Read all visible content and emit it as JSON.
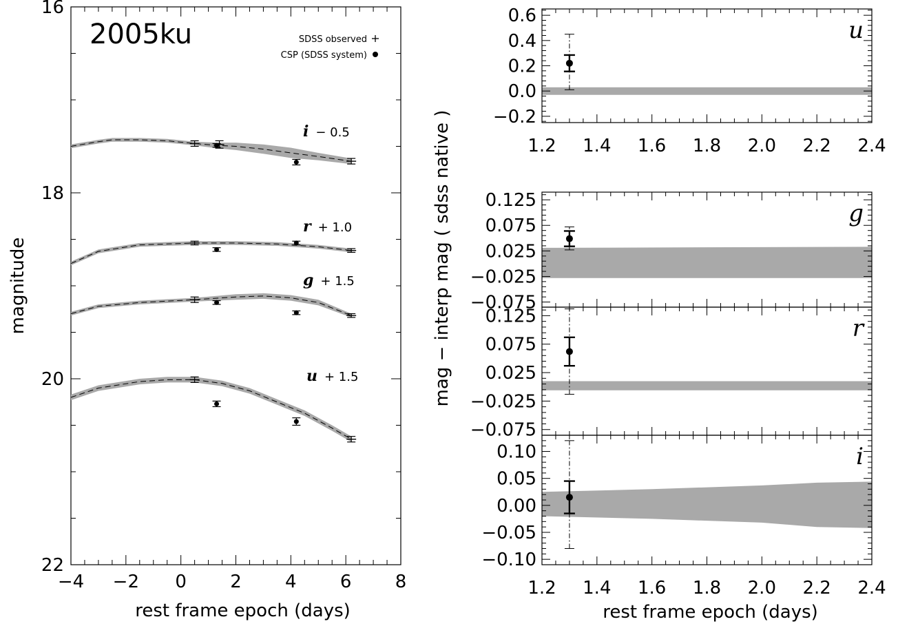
{
  "chart_data": [
    {
      "type": "line",
      "title": "2005ku",
      "xlabel": "rest frame epoch (days)",
      "ylabel": "magnitude",
      "xlim": [
        -4,
        8
      ],
      "ylim": [
        22,
        16
      ],
      "y_inverted": true,
      "xticks": [
        "−4",
        "−2",
        "0",
        "2",
        "4",
        "6",
        "8"
      ],
      "yticks": [
        "16",
        "18",
        "20",
        "22"
      ],
      "legend": {
        "placement": "top-right",
        "entries": [
          {
            "label": "SDSS observed",
            "marker": "+"
          },
          {
            "label": "CSP (SDSS system)",
            "marker": "●"
          }
        ]
      },
      "series": [
        {
          "band": "i",
          "label_band": "i",
          "label_offset": "− 0.5",
          "template_x": [
            -4,
            -3,
            -2.5,
            -1.5,
            -0.5,
            0.5,
            1.3,
            2,
            3,
            4,
            5,
            6.2
          ],
          "template_y": [
            17.5,
            17.45,
            17.43,
            17.43,
            17.44,
            17.47,
            17.49,
            17.5,
            17.53,
            17.57,
            17.61,
            17.66
          ],
          "band_halfwidth": [
            0.02,
            0.02,
            0.02,
            0.02,
            0.02,
            0.02,
            0.03,
            0.04,
            0.05,
            0.055,
            0.04,
            0.03
          ],
          "sdss_x": [
            0.5,
            1.4,
            6.2
          ],
          "sdss_y": [
            17.47,
            17.48,
            17.66
          ],
          "sdss_err": [
            0.03,
            0.04,
            0.03
          ],
          "csp_x": [
            1.3,
            4.2
          ],
          "csp_y": [
            17.49,
            17.67
          ],
          "csp_err": [
            0.02,
            0.03
          ]
        },
        {
          "band": "r",
          "label_band": "r",
          "label_offset": "+ 1.0",
          "template_x": [
            -4,
            -3,
            -1.5,
            0.5,
            2,
            3.5,
            5,
            6.2
          ],
          "template_y": [
            18.76,
            18.63,
            18.56,
            18.54,
            18.54,
            18.55,
            18.58,
            18.62
          ],
          "band_halfwidth": [
            0.02,
            0.02,
            0.02,
            0.02,
            0.02,
            0.02,
            0.02,
            0.02
          ],
          "sdss_x": [
            0.5,
            6.2
          ],
          "sdss_y": [
            18.54,
            18.62
          ],
          "sdss_err": [
            0.02,
            0.02
          ],
          "csp_x": [
            1.3,
            4.2
          ],
          "csp_y": [
            18.61,
            18.54
          ],
          "csp_err": [
            0.02,
            0.02
          ]
        },
        {
          "band": "g",
          "label_band": "g",
          "label_offset": "+ 1.5",
          "template_x": [
            -4,
            -3,
            -1.5,
            0.5,
            2,
            3,
            4,
            5,
            6.2
          ],
          "template_y": [
            19.3,
            19.22,
            19.18,
            19.15,
            19.12,
            19.11,
            19.13,
            19.18,
            19.32
          ],
          "band_halfwidth": [
            0.02,
            0.02,
            0.02,
            0.02,
            0.03,
            0.03,
            0.03,
            0.03,
            0.02
          ],
          "sdss_x": [
            0.5,
            6.2
          ],
          "sdss_y": [
            19.15,
            19.32
          ],
          "sdss_err": [
            0.03,
            0.02
          ],
          "csp_x": [
            1.3,
            4.2
          ],
          "csp_y": [
            19.18,
            19.29
          ],
          "csp_err": [
            0.02,
            0.02
          ]
        },
        {
          "band": "u",
          "label_band": "u",
          "label_offset": "+ 1.5",
          "template_x": [
            -4,
            -3,
            -1.5,
            -0.5,
            0.5,
            1.5,
            2.5,
            3.5,
            4.5,
            5.5,
            6.2
          ],
          "template_y": [
            20.2,
            20.1,
            20.03,
            20.01,
            20.01,
            20.05,
            20.13,
            20.25,
            20.37,
            20.53,
            20.65
          ],
          "band_halfwidth": [
            0.03,
            0.03,
            0.03,
            0.03,
            0.03,
            0.03,
            0.03,
            0.03,
            0.03,
            0.03,
            0.03
          ],
          "sdss_x": [
            0.5,
            6.2
          ],
          "sdss_y": [
            20.01,
            20.65
          ],
          "sdss_err": [
            0.03,
            0.03
          ],
          "csp_x": [
            1.3,
            4.2
          ],
          "csp_y": [
            20.27,
            20.46
          ],
          "csp_err": [
            0.03,
            0.04
          ]
        }
      ]
    },
    {
      "type": "scatter",
      "ylabel": "mag − interp mag ( sdss native )",
      "xlabel": "rest frame epoch (days)",
      "xlim": [
        1.2,
        2.4
      ],
      "xticks": [
        "1.2",
        "1.4",
        "1.6",
        "1.8",
        "2.0",
        "2.2",
        "2.4"
      ],
      "panels": [
        {
          "band": "u",
          "ylim": [
            -0.25,
            0.65
          ],
          "yticks": [
            "0.6",
            "0.4",
            "0.2",
            "0.0",
            "−0.2"
          ],
          "ytick_values": [
            0.6,
            0.4,
            0.2,
            0.0,
            -0.2
          ],
          "band_x": [
            1.2,
            2.4
          ],
          "band_low": [
            -0.03,
            -0.03
          ],
          "band_high": [
            0.03,
            0.03
          ],
          "point": {
            "x": 1.3,
            "y": 0.22,
            "err": 0.065,
            "err_dash_low": 0.01,
            "err_dash_high": 0.45
          }
        },
        {
          "band": "g",
          "ylim": [
            -0.085,
            0.14
          ],
          "yticks": [
            "0.125",
            "0.075",
            "0.025",
            "−0.025",
            "−0.075"
          ],
          "ytick_values": [
            0.125,
            0.075,
            0.025,
            -0.025,
            -0.075
          ],
          "band_x": [
            1.2,
            2.4
          ],
          "band_low": [
            -0.028,
            -0.028
          ],
          "band_high": [
            0.031,
            0.033
          ],
          "point": {
            "x": 1.3,
            "y": 0.049,
            "err": 0.015,
            "err_dash_low": 0.027,
            "err_dash_high": 0.072
          }
        },
        {
          "band": "r",
          "ylim": [
            -0.085,
            0.14
          ],
          "yticks": [
            "0.125",
            "0.075",
            "0.025",
            "−0.025",
            "−0.075"
          ],
          "ytick_values": [
            0.125,
            0.075,
            0.025,
            -0.025,
            -0.075
          ],
          "band_x": [
            1.2,
            2.4
          ],
          "band_low": [
            -0.006,
            -0.006
          ],
          "band_high": [
            0.01,
            0.01
          ],
          "point": {
            "x": 1.3,
            "y": 0.062,
            "err": 0.025,
            "err_dash_low": -0.013,
            "err_dash_high": 0.137
          }
        },
        {
          "band": "i",
          "ylim": [
            -0.11,
            0.13
          ],
          "yticks": [
            "0.10",
            "0.05",
            "0.00",
            "−0.05",
            "−0.10"
          ],
          "ytick_values": [
            0.1,
            0.05,
            0.0,
            -0.05,
            -0.1
          ],
          "band_x": [
            1.2,
            1.6,
            2.0,
            2.2,
            2.4
          ],
          "band_low": [
            -0.02,
            -0.025,
            -0.032,
            -0.04,
            -0.042
          ],
          "band_high": [
            0.025,
            0.03,
            0.037,
            0.042,
            0.044
          ],
          "point": {
            "x": 1.3,
            "y": 0.015,
            "err": 0.03,
            "err_dash_low": -0.08,
            "err_dash_high": 0.12
          }
        }
      ]
    }
  ]
}
